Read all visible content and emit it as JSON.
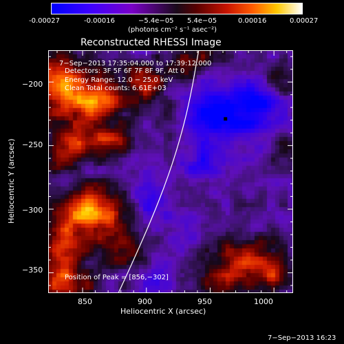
{
  "colorbar": {
    "ticks": [
      "-0.00027",
      "-0.00016",
      "−5.4e−05",
      "5.4e−05",
      "0.00016",
      "0.00027"
    ],
    "units_label": "(photons cm⁻² s⁻¹ asec⁻²)",
    "colors": [
      "#0000ff",
      "#7a00c8",
      "#1a0a1a",
      "#c81400",
      "#ff5a00",
      "#ffc800",
      "#ffffff"
    ]
  },
  "title": "Reconstructed RHESSI Image",
  "info": {
    "line1": "7−Sep−2013 17:35:04.000 to 17:39:12.000",
    "line2": "Detectors: 3F 5F 6F 7F 8F 9F, Att 0",
    "line3": "Energy Range: 12.0 − 25.0 keV",
    "line4": "Clean    Total counts: 6.61E+03"
  },
  "peak_label": "Position of Peak = [856,−302]",
  "footer_date": "7−Sep−2013 16:23",
  "chart_data": {
    "type": "heatmap",
    "title": "Reconstructed RHESSI Image",
    "xlabel": "Heliocentric X (arcsec)",
    "ylabel": "Heliocentric Y (arcsec)",
    "xlim": [
      823,
      1015
    ],
    "ylim": [
      -366,
      -175
    ],
    "xticks": [
      850,
      900,
      950,
      1000
    ],
    "yticks": [
      -350,
      -300,
      -250,
      -200
    ],
    "xticklabels": [
      "850",
      "900",
      "950",
      "1000"
    ],
    "yticklabels": [
      "−350",
      "−300",
      "−250",
      "−200"
    ],
    "colorbar_range": [
      -0.00027,
      0.00027
    ],
    "peak_position": [
      856,
      -302
    ],
    "limb_curve": [
      [
        878,
        -366
      ],
      [
        890,
        -340
      ],
      [
        904,
        -308
      ],
      [
        915,
        -280
      ],
      [
        925,
        -250
      ],
      [
        934,
        -215
      ],
      [
        941,
        -175
      ]
    ],
    "marker": [
      962,
      -229
    ],
    "blobs": [
      {
        "x": 831,
        "y": -200,
        "amp": 0.00022,
        "sx": 14,
        "sy": 18
      },
      {
        "x": 860,
        "y": -215,
        "amp": 0.00024,
        "sx": 16,
        "sy": 14
      },
      {
        "x": 845,
        "y": -248,
        "amp": 0.00018,
        "sx": 12,
        "sy": 9
      },
      {
        "x": 875,
        "y": -248,
        "amp": 0.00015,
        "sx": 12,
        "sy": 8
      },
      {
        "x": 833,
        "y": -262,
        "amp": 0.00013,
        "sx": 9,
        "sy": 6
      },
      {
        "x": 856,
        "y": -302,
        "amp": 0.00027,
        "sx": 17,
        "sy": 13
      },
      {
        "x": 835,
        "y": -335,
        "amp": 0.0002,
        "sx": 12,
        "sy": 16
      },
      {
        "x": 880,
        "y": -330,
        "amp": 0.00012,
        "sx": 12,
        "sy": 12
      },
      {
        "x": 838,
        "y": -362,
        "amp": 0.00016,
        "sx": 14,
        "sy": 8
      },
      {
        "x": 900,
        "y": -200,
        "amp": 0.00016,
        "sx": 10,
        "sy": 10
      },
      {
        "x": 918,
        "y": -225,
        "amp": 0.0001,
        "sx": 8,
        "sy": 8
      },
      {
        "x": 930,
        "y": -190,
        "amp": 0.00014,
        "sx": 8,
        "sy": 10
      },
      {
        "x": 948,
        "y": -180,
        "amp": 0.00012,
        "sx": 10,
        "sy": 7
      },
      {
        "x": 1003,
        "y": -198,
        "amp": 0.00012,
        "sx": 10,
        "sy": 8
      },
      {
        "x": 1008,
        "y": -252,
        "amp": 0.0001,
        "sx": 8,
        "sy": 8
      },
      {
        "x": 975,
        "y": -340,
        "amp": 0.00018,
        "sx": 18,
        "sy": 14
      },
      {
        "x": 1000,
        "y": -350,
        "amp": 0.00012,
        "sx": 10,
        "sy": 10
      },
      {
        "x": 955,
        "y": -360,
        "amp": 0.00012,
        "sx": 12,
        "sy": 8
      },
      {
        "x": 960,
        "y": -225,
        "amp": -0.00022,
        "sx": 22,
        "sy": 16
      },
      {
        "x": 990,
        "y": -215,
        "amp": -0.00012,
        "sx": 10,
        "sy": 10
      },
      {
        "x": 945,
        "y": -265,
        "amp": -0.0001,
        "sx": 12,
        "sy": 10
      },
      {
        "x": 905,
        "y": -295,
        "amp": -0.0001,
        "sx": 10,
        "sy": 14
      },
      {
        "x": 935,
        "y": -312,
        "amp": -6e-05,
        "sx": 10,
        "sy": 10
      },
      {
        "x": 905,
        "y": -355,
        "amp": -6e-05,
        "sx": 10,
        "sy": 8
      }
    ]
  }
}
